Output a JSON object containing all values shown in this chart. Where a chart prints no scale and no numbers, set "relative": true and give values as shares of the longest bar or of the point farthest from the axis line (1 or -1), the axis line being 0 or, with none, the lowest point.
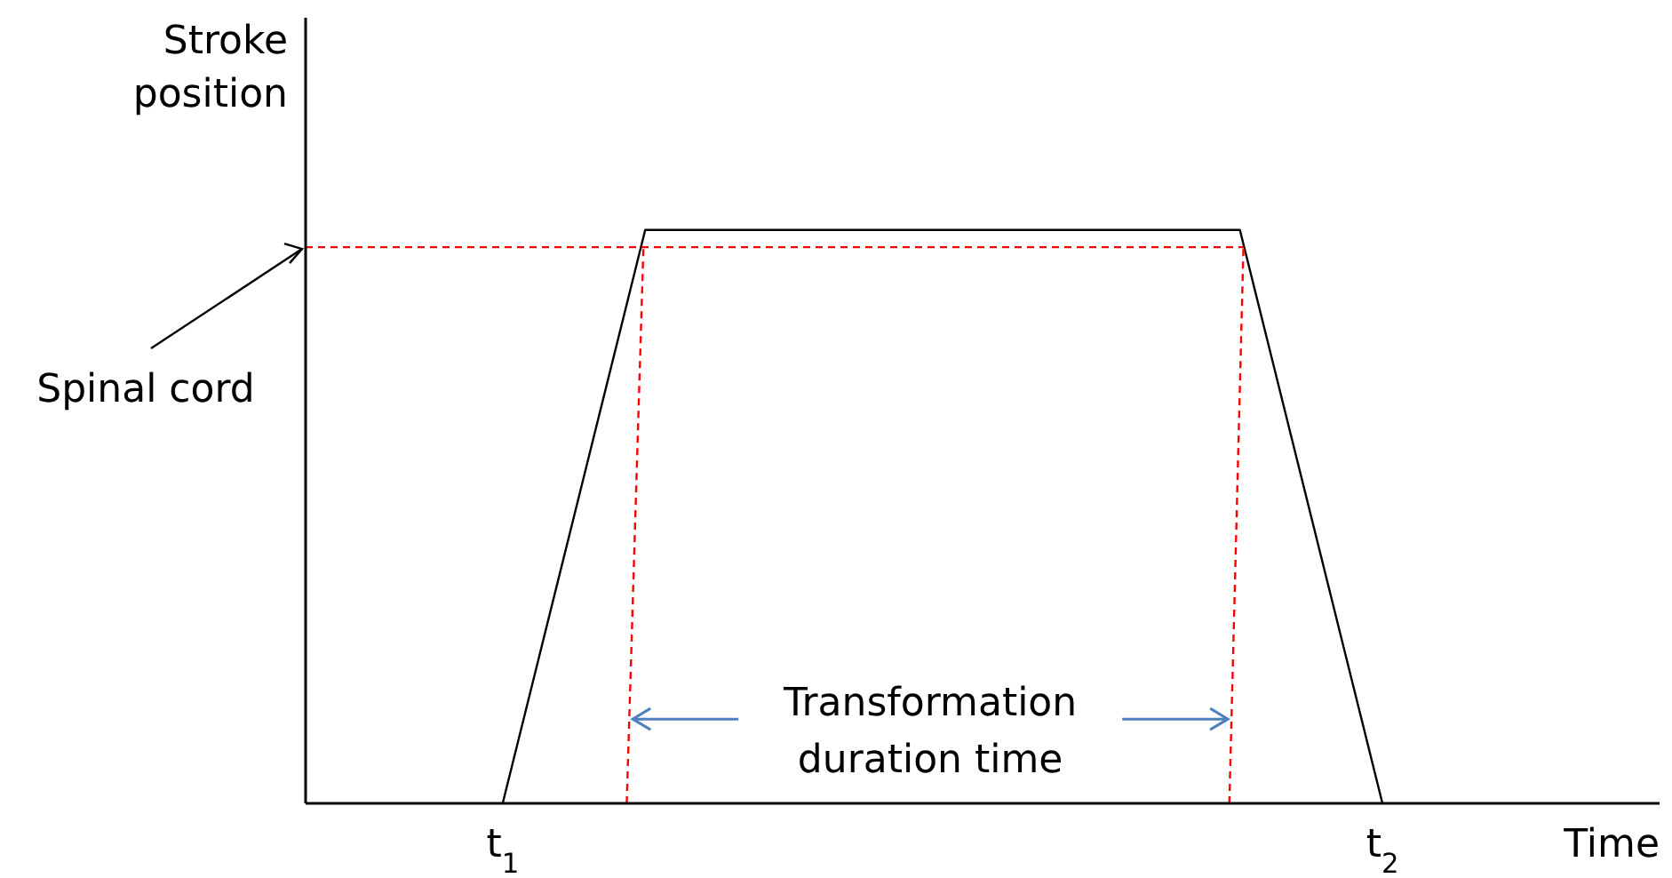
{
  "chart_data": {
    "type": "line",
    "relative": true,
    "xlabel": "Time",
    "ylabel": "Stroke position",
    "xlim": [
      0.776,
      2.315
    ],
    "xticks": [
      {
        "value": 1,
        "label": "t$_{1}$"
      },
      {
        "value": 2,
        "label": "t$_{2}$"
      }
    ],
    "series": [
      {
        "color": "#000000",
        "x": [
          1,
          1.162,
          1.838,
          2
        ],
        "values": [
          0,
          1,
          1,
          0
        ],
        "line_style": "solid"
      },
      {
        "color": "#ff0000",
        "x": [
          0.776,
          1.842
        ],
        "values": [
          0.97,
          0.97
        ],
        "line_style": "dashed"
      },
      {
        "color": "#ff0000",
        "x": [
          1.141,
          1.16
        ],
        "values": [
          0,
          0.97
        ],
        "line_style": "dashed"
      },
      {
        "color": "#ff0000",
        "x": [
          1.826,
          1.842
        ],
        "values": [
          0,
          0.97
        ],
        "line_style": "dashed"
      }
    ],
    "annotations": [
      {
        "text": "Spinal cord",
        "x": 0.776,
        "y": 0.97
      },
      "Transformation duration time"
    ],
    "grid": false,
    "marker": "none"
  }
}
